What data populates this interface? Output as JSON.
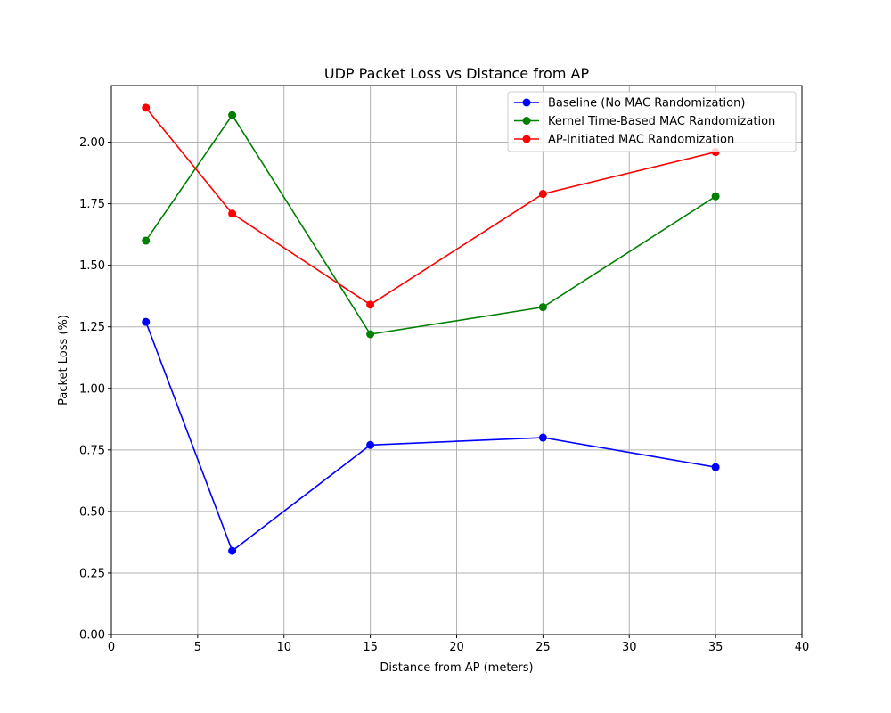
{
  "chart_data": {
    "type": "line",
    "title": "UDP Packet Loss vs Distance from AP",
    "xlabel": "Distance from AP (meters)",
    "ylabel": "Packet Loss (%)",
    "xlim": [
      0,
      40
    ],
    "ylim": [
      0,
      2.23
    ],
    "xticks": [
      0,
      5,
      10,
      15,
      20,
      25,
      30,
      35,
      40
    ],
    "xtick_labels": [
      "0",
      "5",
      "10",
      "15",
      "20",
      "25",
      "30",
      "35",
      "40"
    ],
    "yticks": [
      0,
      0.25,
      0.5,
      0.75,
      1.0,
      1.25,
      1.5,
      1.75,
      2.0
    ],
    "ytick_labels": [
      "0.00",
      "0.25",
      "0.50",
      "0.75",
      "1.00",
      "1.25",
      "1.50",
      "1.75",
      "2.00"
    ],
    "grid": true,
    "legend_position": "top-right",
    "x": [
      2,
      7,
      15,
      25,
      35
    ],
    "series": [
      {
        "name": "Baseline (No MAC Randomization)",
        "color": "#0000ff",
        "values": [
          1.27,
          0.34,
          0.77,
          0.8,
          0.68
        ]
      },
      {
        "name": "Kernel Time-Based MAC Randomization",
        "color": "#008000",
        "values": [
          1.6,
          2.11,
          1.22,
          1.33,
          1.78
        ]
      },
      {
        "name": "AP-Initiated MAC Randomization",
        "color": "#ff0000",
        "values": [
          2.14,
          1.71,
          1.34,
          1.79,
          1.96
        ]
      }
    ]
  }
}
